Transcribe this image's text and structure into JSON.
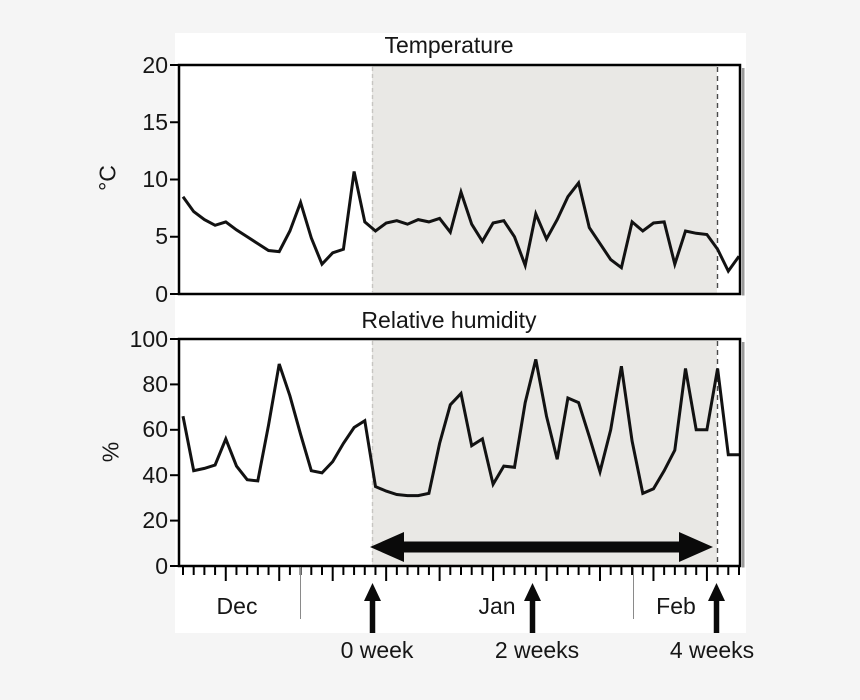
{
  "chart_data": [
    {
      "type": "line",
      "title": "Temperature",
      "ylabel": "°C",
      "ylim": [
        0,
        20
      ],
      "yticks": [
        0,
        5,
        10,
        15,
        20
      ],
      "x_axis_months": [
        "Dec",
        "Jan",
        "Feb"
      ],
      "grid": false,
      "legend": "none",
      "values": [
        8.5,
        7.2,
        6.5,
        6.0,
        6.3,
        5.6,
        5.0,
        4.4,
        3.8,
        3.7,
        5.5,
        8.0,
        4.9,
        2.6,
        3.6,
        3.9,
        10.7,
        6.3,
        5.5,
        6.2,
        6.4,
        6.1,
        6.5,
        6.3,
        6.6,
        5.4,
        8.9,
        6.1,
        4.6,
        6.2,
        6.4,
        5.0,
        2.5,
        7.0,
        4.8,
        6.5,
        8.5,
        9.7,
        5.8,
        4.4,
        3.0,
        2.3,
        6.3,
        5.5,
        6.2,
        6.3,
        2.6,
        5.5,
        5.3,
        5.2,
        3.9,
        2.0,
        3.3
      ]
    },
    {
      "type": "line",
      "title": "Relative humidity",
      "ylabel": "%",
      "ylim": [
        0,
        100
      ],
      "yticks": [
        0,
        20,
        40,
        60,
        80,
        100
      ],
      "x_axis_months": [
        "Dec",
        "Jan",
        "Feb"
      ],
      "grid": false,
      "legend": "none",
      "values": [
        66,
        42,
        43,
        44.5,
        56,
        44,
        38,
        37.5,
        62,
        89,
        75,
        58,
        42,
        41,
        46,
        54,
        61,
        64,
        35,
        33,
        31.5,
        31,
        31,
        32,
        54,
        71,
        76,
        53,
        56,
        36,
        44,
        43.5,
        72,
        91,
        66,
        47,
        74,
        72,
        57,
        41.5,
        60,
        88,
        55,
        32,
        34,
        42,
        51,
        87,
        60,
        60,
        87,
        49,
        49
      ]
    }
  ],
  "x_axis": {
    "months": [
      "Dec",
      "Jan",
      "Feb"
    ],
    "weeks": [
      "0 week",
      "2 weeks",
      "4 weeks"
    ]
  },
  "annotations": {
    "shaded_period_start_label": "0 week",
    "shaded_period_end_label": "4 weeks",
    "double_arrow": "treatment period span in humidity panel"
  },
  "colors": {
    "page_bg": "#f5f5f5",
    "canvas_bg": "#ffffff",
    "shade": "#e9e8e5",
    "line": "#121212",
    "frame": "#000000",
    "shadow": "#9a9a9a",
    "dash_left": "#c7c5c2",
    "dash_right": "#4a4a4a",
    "month_sep": "#8a8a8a",
    "text": "#161616"
  }
}
